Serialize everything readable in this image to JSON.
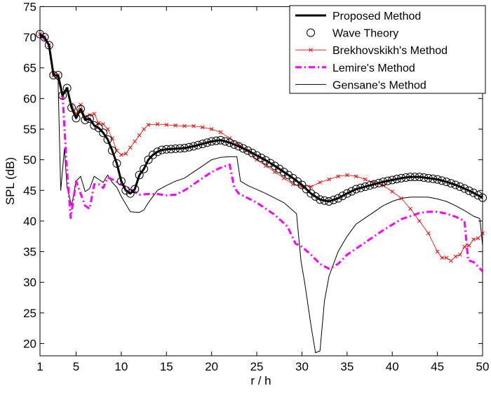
{
  "chart_data": {
    "type": "line",
    "title": "",
    "xlabel": "r / h",
    "ylabel": "SPL (dB)",
    "xlim": [
      1,
      50
    ],
    "ylim": [
      18,
      75
    ],
    "xticks": [
      1,
      5,
      10,
      15,
      20,
      25,
      30,
      35,
      40,
      45,
      50
    ],
    "yticks": [
      20,
      25,
      30,
      35,
      40,
      45,
      50,
      55,
      60,
      65,
      70,
      75
    ],
    "grid": false,
    "legend_position": "top-right",
    "series": [
      {
        "name": "Proposed Method",
        "style": "thick-solid",
        "color": "#000000",
        "points": [
          [
            1,
            70.5
          ],
          [
            1.5,
            70
          ],
          [
            2,
            68.7
          ],
          [
            2.5,
            63.8
          ],
          [
            3,
            63.8
          ],
          [
            3.5,
            60.5
          ],
          [
            4,
            61.7
          ],
          [
            4.5,
            58.5
          ],
          [
            5,
            56.8
          ],
          [
            5.5,
            58.3
          ],
          [
            6,
            56.5
          ],
          [
            6.5,
            56.7
          ],
          [
            7,
            55.6
          ],
          [
            7.5,
            55.2
          ],
          [
            8,
            54.4
          ],
          [
            8.5,
            53.3
          ],
          [
            9,
            51.5
          ],
          [
            9.5,
            49.4
          ],
          [
            10,
            46.5
          ],
          [
            10.5,
            45
          ],
          [
            11,
            44.5
          ],
          [
            11.5,
            45.2
          ],
          [
            12,
            47.5
          ],
          [
            12.5,
            48.5
          ],
          [
            13,
            50
          ],
          [
            13.5,
            50.8
          ],
          [
            14,
            51.3
          ],
          [
            14.5,
            51.6
          ],
          [
            15,
            51.7
          ],
          [
            16,
            51.8
          ],
          [
            17,
            51.9
          ],
          [
            18,
            52.2
          ],
          [
            19,
            52.6
          ],
          [
            20,
            53
          ],
          [
            21,
            53.2
          ],
          [
            22,
            52.8
          ],
          [
            23,
            52.2
          ],
          [
            24,
            51.5
          ],
          [
            25,
            50.7
          ],
          [
            26,
            49.9
          ],
          [
            27,
            49
          ],
          [
            28,
            48
          ],
          [
            29,
            47
          ],
          [
            30,
            45.9
          ],
          [
            31,
            44.5
          ],
          [
            32,
            43.5
          ],
          [
            33,
            43.2
          ],
          [
            34,
            43.7
          ],
          [
            35,
            44.5
          ],
          [
            36,
            45.2
          ],
          [
            37,
            45.6
          ],
          [
            38,
            46
          ],
          [
            39,
            46.4
          ],
          [
            40,
            46.7
          ],
          [
            41,
            47
          ],
          [
            42,
            47.2
          ],
          [
            43,
            47.2
          ],
          [
            44,
            47
          ],
          [
            45,
            46.8
          ],
          [
            46,
            46.4
          ],
          [
            47,
            45.9
          ],
          [
            48,
            45.3
          ],
          [
            49,
            44.6
          ],
          [
            50,
            43.8
          ]
        ]
      },
      {
        "name": "Wave Theory",
        "style": "open-circle-markers",
        "color": "#000000",
        "marker_step": 0.5,
        "follows": "Proposed Method"
      },
      {
        "name": "Brekhovskikh's Method",
        "style": "thin-solid-x-markers",
        "color": "#ff0000",
        "points": [
          [
            1,
            70.5
          ],
          [
            1.5,
            70
          ],
          [
            2,
            68.7
          ],
          [
            2.5,
            63.8
          ],
          [
            3,
            63.8
          ],
          [
            3.5,
            60.5
          ],
          [
            4,
            61.5
          ],
          [
            4.5,
            59
          ],
          [
            5,
            57.5
          ],
          [
            5.5,
            59
          ],
          [
            6,
            57
          ],
          [
            6.5,
            57.3
          ],
          [
            7,
            57.5
          ],
          [
            7.5,
            56
          ],
          [
            8,
            55.8
          ],
          [
            8.5,
            55
          ],
          [
            9,
            53.5
          ],
          [
            9.5,
            51.5
          ],
          [
            10,
            50.8
          ],
          [
            10.5,
            51
          ],
          [
            11,
            52
          ],
          [
            11.5,
            53
          ],
          [
            12,
            54
          ],
          [
            12.5,
            55
          ],
          [
            13,
            55.7
          ],
          [
            14,
            55.8
          ],
          [
            15,
            55.7
          ],
          [
            16,
            55.6
          ],
          [
            17,
            55.5
          ],
          [
            18,
            55.5
          ],
          [
            19,
            55.3
          ],
          [
            20,
            55
          ],
          [
            21,
            54.5
          ],
          [
            22,
            53.5
          ],
          [
            23,
            52.5
          ],
          [
            24,
            51.5
          ],
          [
            25,
            50
          ],
          [
            26,
            49
          ],
          [
            27,
            48
          ],
          [
            28,
            47
          ],
          [
            29,
            46
          ],
          [
            30,
            45.6
          ],
          [
            31,
            45.6
          ],
          [
            32,
            46.3
          ],
          [
            33,
            46.8
          ],
          [
            34,
            47.3
          ],
          [
            35,
            47.5
          ],
          [
            36,
            47.3
          ],
          [
            37,
            46.8
          ],
          [
            38,
            46.3
          ],
          [
            39,
            45.8
          ],
          [
            40,
            44.8
          ],
          [
            41,
            43.7
          ],
          [
            42,
            42
          ],
          [
            43,
            40
          ],
          [
            44,
            38
          ],
          [
            45,
            35
          ],
          [
            45.5,
            34
          ],
          [
            46,
            34
          ],
          [
            46.5,
            33.5
          ],
          [
            47,
            34.2
          ],
          [
            47.5,
            34.5
          ],
          [
            48,
            35.8
          ],
          [
            48.5,
            36
          ],
          [
            49,
            37
          ],
          [
            49.5,
            37.2
          ],
          [
            50,
            38
          ]
        ]
      },
      {
        "name": "Lemire's Method",
        "style": "thick-dash-dot",
        "color": "#ff00ff",
        "points": [
          [
            1,
            70.5
          ],
          [
            2,
            68.7
          ],
          [
            2.5,
            63.8
          ],
          [
            3,
            63.5
          ],
          [
            3.5,
            60.5
          ],
          [
            4,
            48
          ],
          [
            4.4,
            40.5
          ],
          [
            5,
            46.5
          ],
          [
            5.5,
            44.5
          ],
          [
            6,
            42.5
          ],
          [
            6.5,
            42
          ],
          [
            7,
            46
          ],
          [
            7.5,
            46
          ],
          [
            8,
            45.4
          ],
          [
            8.5,
            47.1
          ],
          [
            9,
            46.8
          ],
          [
            10,
            46
          ],
          [
            11,
            45.2
          ],
          [
            12,
            44.3
          ],
          [
            13,
            44.4
          ],
          [
            14,
            44.4
          ],
          [
            15,
            44.2
          ],
          [
            16,
            44.3
          ],
          [
            17,
            45
          ],
          [
            18,
            46
          ],
          [
            19,
            47
          ],
          [
            20,
            48
          ],
          [
            21,
            48.7
          ],
          [
            22,
            49.2
          ],
          [
            22.5,
            45.5
          ],
          [
            23,
            44.5
          ],
          [
            25,
            43
          ],
          [
            27,
            41
          ],
          [
            28.4,
            39.1
          ],
          [
            29.3,
            36.3
          ],
          [
            30,
            35.8
          ],
          [
            31,
            34.5
          ],
          [
            32,
            33
          ],
          [
            33,
            32.2
          ],
          [
            34,
            33
          ],
          [
            35,
            34.5
          ],
          [
            37,
            36.5
          ],
          [
            39,
            38.5
          ],
          [
            41,
            40.3
          ],
          [
            43,
            41.3
          ],
          [
            44,
            41.5
          ],
          [
            45,
            41.5
          ],
          [
            46,
            41.2
          ],
          [
            47,
            40.7
          ],
          [
            48,
            40
          ],
          [
            48.4,
            33.6
          ],
          [
            49,
            33.3
          ],
          [
            50,
            31.8
          ]
        ]
      },
      {
        "name": "Gensane's Method",
        "style": "thin-solid",
        "color": "#000000",
        "points": [
          [
            1,
            70.5
          ],
          [
            2,
            68.7
          ],
          [
            2.5,
            63.8
          ],
          [
            3,
            63
          ],
          [
            3.3,
            45
          ],
          [
            3.7,
            51.8
          ],
          [
            4,
            45.5
          ],
          [
            4.5,
            42.5
          ],
          [
            5,
            46.5
          ],
          [
            5.5,
            47.3
          ],
          [
            6,
            44.8
          ],
          [
            6.5,
            45.3
          ],
          [
            7,
            47.3
          ],
          [
            7.5,
            46.8
          ],
          [
            8,
            46.3
          ],
          [
            8.5,
            47.5
          ],
          [
            9,
            46.3
          ],
          [
            9.5,
            45.5
          ],
          [
            10,
            44
          ],
          [
            11,
            41.5
          ],
          [
            12,
            41.4
          ],
          [
            12.5,
            41.8
          ],
          [
            13,
            43
          ],
          [
            14,
            45
          ],
          [
            15,
            45.8
          ],
          [
            16,
            46.5
          ],
          [
            17,
            47
          ],
          [
            18,
            48
          ],
          [
            19,
            49
          ],
          [
            20,
            50
          ],
          [
            21,
            50.4
          ],
          [
            22,
            50.5
          ],
          [
            22.8,
            50.5
          ],
          [
            23.2,
            46.5
          ],
          [
            24,
            45.8
          ],
          [
            26,
            44.5
          ],
          [
            28,
            43
          ],
          [
            29.4,
            41.2
          ],
          [
            29.9,
            33.4
          ],
          [
            30.3,
            30
          ],
          [
            31,
            23
          ],
          [
            31.5,
            18.5
          ],
          [
            32,
            18.8
          ],
          [
            32.5,
            27
          ],
          [
            33,
            31
          ],
          [
            34,
            35
          ],
          [
            35,
            37.5
          ],
          [
            36,
            39.5
          ],
          [
            37,
            40.5
          ],
          [
            38,
            41.5
          ],
          [
            39,
            42.5
          ],
          [
            40,
            43.2
          ],
          [
            41,
            43.7
          ],
          [
            42,
            43.9
          ],
          [
            43,
            43.9
          ],
          [
            44,
            43.9
          ],
          [
            45,
            43.6
          ],
          [
            46,
            43.2
          ],
          [
            47,
            42.5
          ],
          [
            48,
            41.7
          ],
          [
            49,
            40.8
          ],
          [
            49.7,
            40.4
          ],
          [
            50,
            36
          ]
        ]
      }
    ]
  }
}
